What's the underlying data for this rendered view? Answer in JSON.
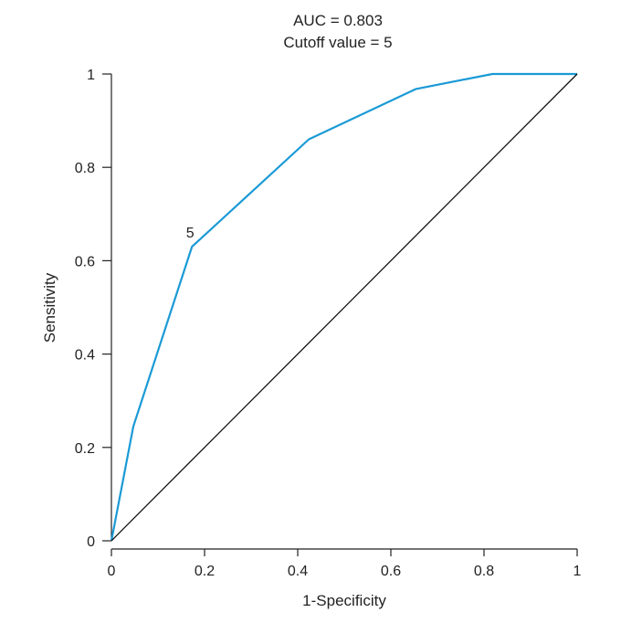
{
  "chart_data": {
    "type": "line",
    "title": "AUC = 0.803",
    "subtitle": "Cutoff value = 5",
    "xlabel": "1-Specificity",
    "ylabel": "Sensitivity",
    "xlim": [
      0,
      1
    ],
    "ylim": [
      0,
      1
    ],
    "x_ticks": [
      0,
      0.2,
      0.4,
      0.6,
      0.8,
      1
    ],
    "x_tick_labels": [
      "0",
      "0.2",
      "0.4",
      "0.6",
      "0.8",
      "1"
    ],
    "y_ticks": [
      0,
      0.2,
      0.4,
      0.6,
      0.8,
      1
    ],
    "y_tick_labels": [
      "0",
      "0.2",
      "0.4",
      "0.6",
      "0.8",
      "1"
    ],
    "grid": false,
    "legend": "none",
    "series": [
      {
        "color": "#1a9ad6",
        "x": [
          0,
          0.047,
          0.173,
          0.424,
          0.654,
          0.818,
          1
        ],
        "y": [
          0,
          0.245,
          0.63,
          0.86,
          0.968,
          1,
          1
        ]
      },
      {
        "color": "#111111",
        "x": [
          0,
          1
        ],
        "y": [
          0,
          1
        ]
      }
    ],
    "annotations": [
      {
        "text": "5",
        "x": 0.173,
        "y": 0.63
      }
    ]
  }
}
